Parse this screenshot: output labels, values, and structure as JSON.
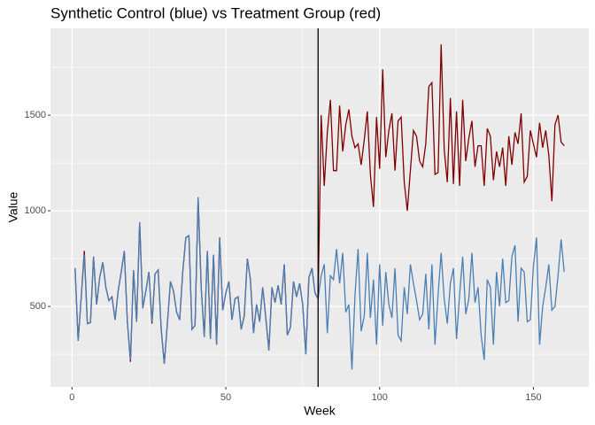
{
  "chart_data": {
    "type": "line",
    "title": "Synthetic Control (blue) vs Treatment Group (red)",
    "x_label": "Week",
    "y_label": "Value",
    "x": [
      1,
      2,
      3,
      4,
      5,
      6,
      7,
      8,
      9,
      10,
      11,
      12,
      13,
      14,
      15,
      16,
      17,
      18,
      19,
      20,
      21,
      22,
      23,
      24,
      25,
      26,
      27,
      28,
      29,
      30,
      31,
      32,
      33,
      34,
      35,
      36,
      37,
      38,
      39,
      40,
      41,
      42,
      43,
      44,
      45,
      46,
      47,
      48,
      49,
      50,
      51,
      52,
      53,
      54,
      55,
      56,
      57,
      58,
      59,
      60,
      61,
      62,
      63,
      64,
      65,
      66,
      67,
      68,
      69,
      70,
      71,
      72,
      73,
      74,
      75,
      76,
      77,
      78,
      79,
      80,
      81,
      82,
      83,
      84,
      85,
      86,
      87,
      88,
      89,
      90,
      91,
      92,
      93,
      94,
      95,
      96,
      97,
      98,
      99,
      100,
      101,
      102,
      103,
      104,
      105,
      106,
      107,
      108,
      109,
      110,
      111,
      112,
      113,
      114,
      115,
      116,
      117,
      118,
      119,
      120,
      121,
      122,
      123,
      124,
      125,
      126,
      127,
      128,
      129,
      130,
      131,
      132,
      133,
      134,
      135,
      136,
      137,
      138,
      139,
      140,
      141,
      142,
      143,
      144,
      145,
      146,
      147,
      148,
      149,
      150,
      151,
      152,
      153,
      154,
      155,
      156,
      157,
      158,
      159,
      160
    ],
    "series": [
      {
        "name": "Treatment Group",
        "color": "#800000",
        "values": [
          700,
          320,
          550,
          790,
          410,
          415,
          760,
          510,
          650,
          730,
          600,
          530,
          550,
          430,
          580,
          680,
          790,
          420,
          210,
          690,
          420,
          940,
          490,
          580,
          680,
          410,
          670,
          690,
          380,
          200,
          410,
          630,
          580,
          470,
          430,
          680,
          860,
          870,
          380,
          400,
          1070,
          600,
          340,
          790,
          330,
          770,
          300,
          860,
          480,
          570,
          630,
          430,
          540,
          550,
          380,
          450,
          750,
          640,
          360,
          510,
          420,
          600,
          440,
          270,
          600,
          520,
          610,
          510,
          720,
          350,
          390,
          630,
          550,
          620,
          510,
          250,
          650,
          700,
          570,
          540,
          1500,
          1130,
          1410,
          1580,
          1210,
          1210,
          1550,
          1310,
          1450,
          1530,
          1390,
          1330,
          1350,
          1240,
          1370,
          1520,
          1190,
          1020,
          1490,
          1220,
          1740,
          1280,
          1420,
          1510,
          1210,
          1470,
          1490,
          1150,
          1000,
          1210,
          1420,
          1390,
          1260,
          1230,
          1350,
          1650,
          1670,
          1190,
          1200,
          1870,
          1320,
          1150,
          1590,
          1140,
          1520,
          1130,
          1580,
          1260,
          1380,
          1470,
          1230,
          1340,
          1340,
          1130,
          1430,
          1390,
          1160,
          1310,
          1230,
          1330,
          1130,
          1390,
          1240,
          1410,
          1350,
          1510,
          1150,
          1180,
          1420,
          1350,
          1280,
          1460,
          1330,
          1420,
          1290,
          1050,
          1450,
          1500,
          1360,
          1340
        ]
      },
      {
        "name": "Synthetic Control",
        "color": "#4a7fb5",
        "values": [
          700,
          320,
          550,
          770,
          410,
          415,
          760,
          510,
          650,
          730,
          600,
          530,
          550,
          430,
          580,
          680,
          790,
          420,
          220,
          690,
          420,
          940,
          490,
          580,
          680,
          420,
          670,
          690,
          380,
          200,
          410,
          630,
          580,
          470,
          430,
          680,
          860,
          870,
          380,
          400,
          1070,
          600,
          340,
          790,
          330,
          770,
          300,
          860,
          480,
          570,
          630,
          430,
          540,
          550,
          380,
          450,
          750,
          640,
          360,
          510,
          420,
          600,
          440,
          270,
          600,
          520,
          610,
          510,
          720,
          350,
          390,
          630,
          550,
          620,
          510,
          250,
          650,
          700,
          570,
          540,
          660,
          720,
          360,
          660,
          640,
          800,
          620,
          780,
          470,
          510,
          170,
          560,
          800,
          370,
          450,
          780,
          440,
          640,
          300,
          720,
          400,
          680,
          510,
          440,
          700,
          350,
          320,
          600,
          460,
          720,
          620,
          530,
          430,
          460,
          670,
          380,
          720,
          300,
          560,
          780,
          540,
          410,
          620,
          700,
          330,
          560,
          760,
          460,
          540,
          780,
          520,
          600,
          350,
          220,
          640,
          600,
          300,
          680,
          500,
          750,
          520,
          530,
          760,
          820,
          420,
          700,
          680,
          420,
          430,
          710,
          860,
          300,
          500,
          600,
          720,
          480,
          500,
          660,
          850,
          680
        ]
      }
    ],
    "xlim": [
      -7,
      168
    ],
    "ylim": [
      79,
      1954
    ],
    "xticks": [
      0,
      50,
      100,
      150
    ],
    "yticks": [
      500,
      1000,
      1500
    ],
    "minor_xticks": [
      25,
      75,
      125
    ],
    "minor_yticks": [
      250,
      750,
      1250,
      1750
    ],
    "vline": 80,
    "grid": true
  }
}
